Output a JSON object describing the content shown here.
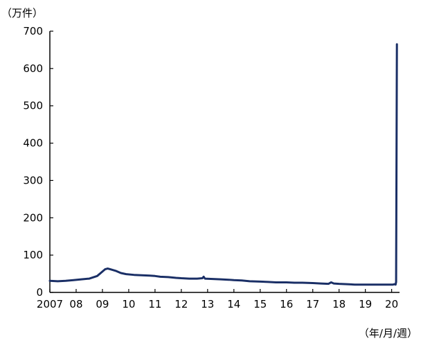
{
  "chart_data": {
    "type": "line",
    "title": "",
    "ylabel": "（万件）",
    "xlabel": "（年/月/週）",
    "ylim": [
      0,
      700
    ],
    "yticks": [
      0,
      100,
      200,
      300,
      400,
      500,
      600,
      700
    ],
    "xlim": [
      2007.0,
      2020.3
    ],
    "x_tick_labels": [
      {
        "x": 2007,
        "label": "2007"
      },
      {
        "x": 2008,
        "label": "08"
      },
      {
        "x": 2009,
        "label": "09"
      },
      {
        "x": 2010,
        "label": "10"
      },
      {
        "x": 2011,
        "label": "11"
      },
      {
        "x": 2012,
        "label": "12"
      },
      {
        "x": 2013,
        "label": "13"
      },
      {
        "x": 2014,
        "label": "14"
      },
      {
        "x": 2015,
        "label": "15"
      },
      {
        "x": 2016,
        "label": "16"
      },
      {
        "x": 2017,
        "label": "17"
      },
      {
        "x": 2018,
        "label": "18"
      },
      {
        "x": 2019,
        "label": "19"
      },
      {
        "x": 2020,
        "label": "20"
      }
    ],
    "series": [
      {
        "color": "#1a2f66",
        "points": [
          [
            2007.0,
            31
          ],
          [
            2007.3,
            30
          ],
          [
            2007.6,
            31
          ],
          [
            2007.9,
            33
          ],
          [
            2008.2,
            35
          ],
          [
            2008.5,
            37
          ],
          [
            2008.8,
            44
          ],
          [
            2009.0,
            56
          ],
          [
            2009.1,
            62
          ],
          [
            2009.2,
            64
          ],
          [
            2009.3,
            62
          ],
          [
            2009.5,
            58
          ],
          [
            2009.7,
            52
          ],
          [
            2009.9,
            49
          ],
          [
            2010.2,
            47
          ],
          [
            2010.5,
            46
          ],
          [
            2010.8,
            45
          ],
          [
            2011.0,
            44
          ],
          [
            2011.2,
            42
          ],
          [
            2011.5,
            41
          ],
          [
            2011.8,
            39
          ],
          [
            2012.0,
            38
          ],
          [
            2012.3,
            37
          ],
          [
            2012.6,
            37
          ],
          [
            2012.8,
            38
          ],
          [
            2012.85,
            42
          ],
          [
            2012.9,
            37
          ],
          [
            2013.2,
            36
          ],
          [
            2013.5,
            35
          ],
          [
            2013.8,
            34
          ],
          [
            2014.0,
            33
          ],
          [
            2014.3,
            32
          ],
          [
            2014.6,
            30
          ],
          [
            2015.0,
            29
          ],
          [
            2015.3,
            28
          ],
          [
            2015.6,
            27
          ],
          [
            2016.0,
            27
          ],
          [
            2016.3,
            26
          ],
          [
            2016.6,
            26
          ],
          [
            2017.0,
            25
          ],
          [
            2017.3,
            24
          ],
          [
            2017.6,
            23
          ],
          [
            2017.7,
            27
          ],
          [
            2017.8,
            24
          ],
          [
            2018.0,
            23
          ],
          [
            2018.3,
            22
          ],
          [
            2018.6,
            21
          ],
          [
            2019.0,
            21
          ],
          [
            2019.3,
            21
          ],
          [
            2019.6,
            21
          ],
          [
            2019.9,
            21
          ],
          [
            2020.05,
            21
          ],
          [
            2020.1,
            22
          ],
          [
            2020.15,
            21
          ],
          [
            2020.17,
            28
          ],
          [
            2020.2,
            665
          ]
        ]
      }
    ],
    "grid": false,
    "legend": "none"
  }
}
